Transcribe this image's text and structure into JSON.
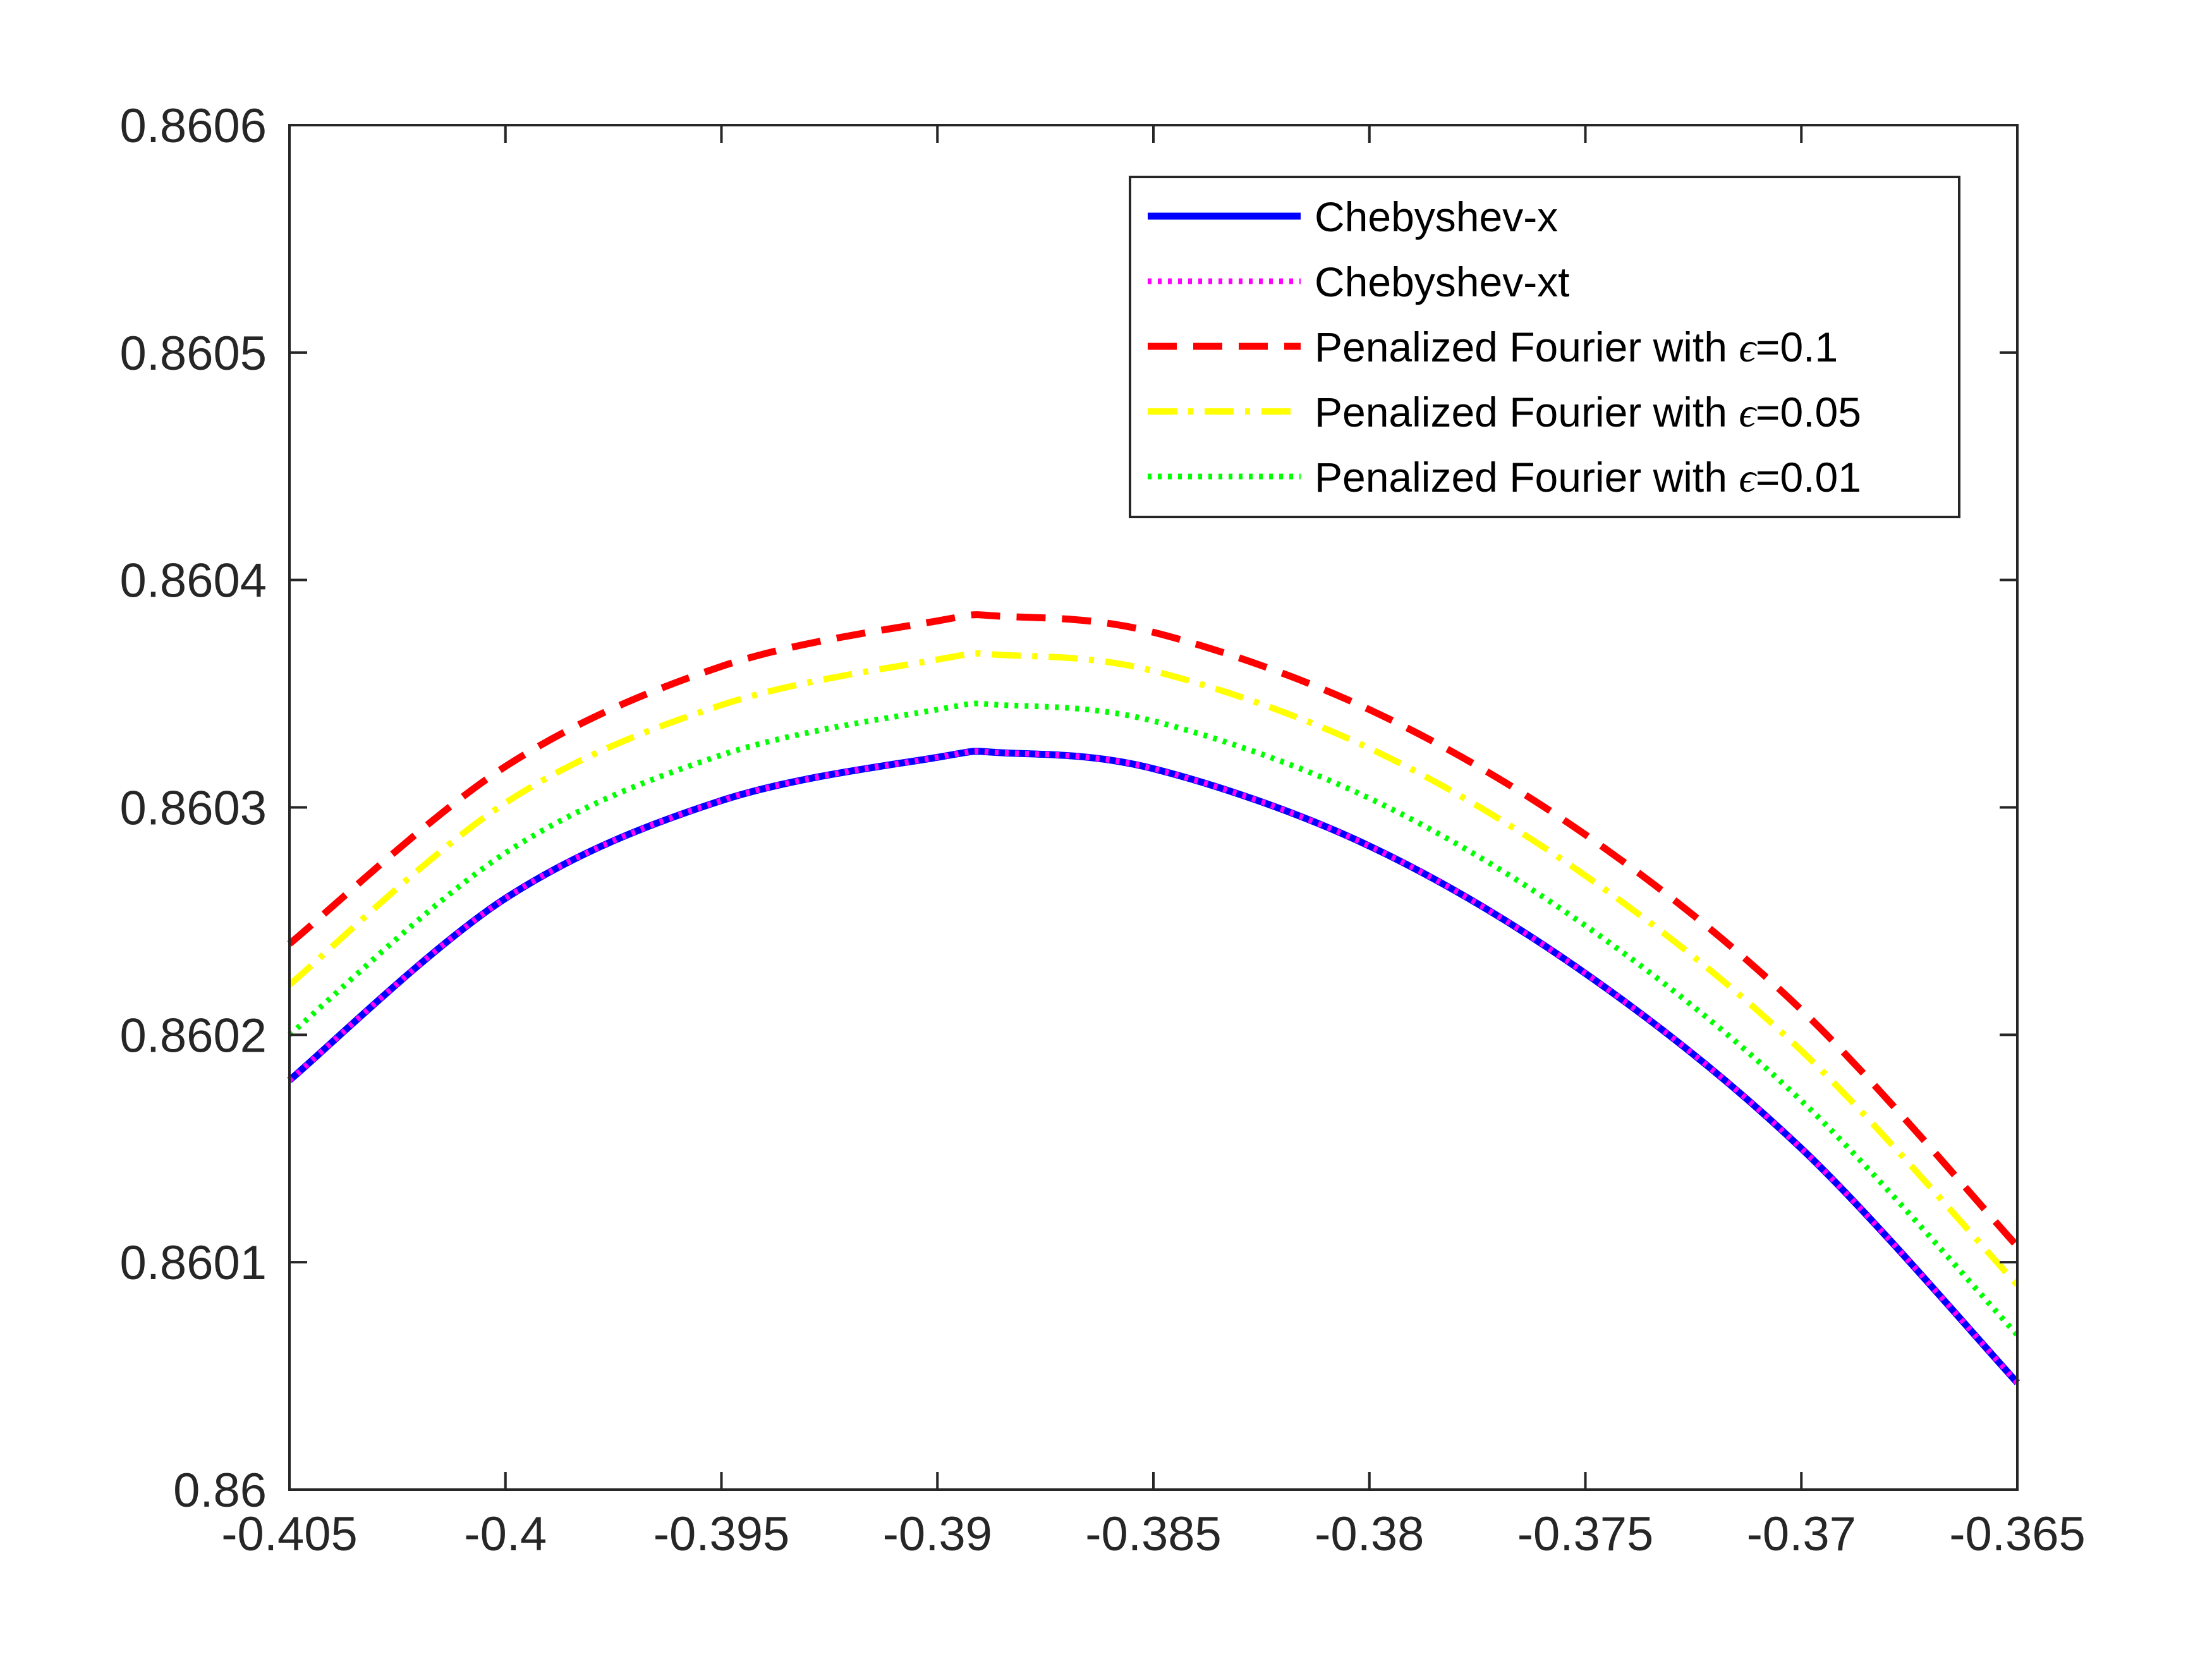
{
  "chart_data": {
    "type": "line",
    "title": "",
    "xlabel": "",
    "ylabel": "",
    "xlim": [
      -0.405,
      -0.365
    ],
    "ylim": [
      0.86,
      0.8606
    ],
    "x_ticks": [
      -0.405,
      -0.4,
      -0.395,
      -0.39,
      -0.385,
      -0.38,
      -0.375,
      -0.37,
      -0.365
    ],
    "x_tick_labels": [
      "-0.405",
      "-0.4",
      "-0.395",
      "-0.39",
      "-0.385",
      "-0.38",
      "-0.375",
      "-0.37",
      "-0.365"
    ],
    "y_ticks": [
      0.86,
      0.8601,
      0.8602,
      0.8603,
      0.8604,
      0.8605,
      0.8606
    ],
    "y_tick_labels": [
      "0.86",
      "0.8601",
      "0.8602",
      "0.8603",
      "0.8604",
      "0.8605",
      "0.8606"
    ],
    "grid": false,
    "legend_position": "top-right",
    "x": [
      -0.405,
      -0.4,
      -0.395,
      -0.39,
      -0.3885,
      -0.385,
      -0.38,
      -0.375,
      -0.37,
      -0.365
    ],
    "series": [
      {
        "name": "Chebyshev-x",
        "color": "#0000ff",
        "style": "solid",
        "values": [
          0.86018,
          0.86026,
          0.860303,
          0.860322,
          0.860324,
          0.860317,
          0.860283,
          0.860227,
          0.86015,
          0.860047
        ]
      },
      {
        "name": "Chebyshev-xt",
        "color": "#ff00ff",
        "style": "dotted",
        "values": [
          0.86018,
          0.86026,
          0.860303,
          0.860322,
          0.860324,
          0.860317,
          0.860283,
          0.860227,
          0.86015,
          0.860047
        ]
      },
      {
        "name_prefix": "Penalized Fourier with ",
        "name_symbol": "ϵ",
        "name_suffix": "=0.1",
        "color": "#ff0000",
        "style": "dashed",
        "values": [
          0.86024,
          0.860318,
          0.860362,
          0.860382,
          0.860384,
          0.860377,
          0.860343,
          0.860288,
          0.860211,
          0.860107
        ]
      },
      {
        "name_prefix": "Penalized Fourier with ",
        "name_symbol": "ϵ",
        "name_suffix": "=0.05",
        "color": "#ffff00",
        "style": "dashdot",
        "values": [
          0.860222,
          0.860302,
          0.860345,
          0.860365,
          0.860367,
          0.86036,
          0.860326,
          0.86027,
          0.860193,
          0.86009
        ]
      },
      {
        "name_prefix": "Penalized Fourier with ",
        "name_symbol": "ϵ",
        "name_suffix": "=0.01",
        "color": "#00ff00",
        "style": "dotted",
        "values": [
          0.8602,
          0.86028,
          0.860323,
          0.860343,
          0.860345,
          0.860338,
          0.860304,
          0.860248,
          0.860171,
          0.860068
        ]
      }
    ]
  }
}
